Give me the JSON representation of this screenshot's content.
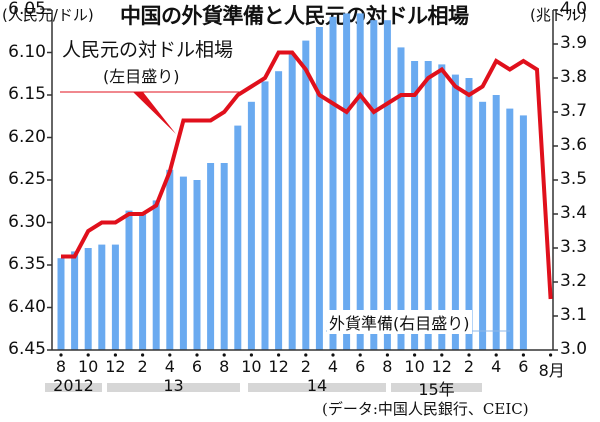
{
  "title": "中国の外貨準備と人民元の対ドル相場",
  "unit_left": "(人民元/ドル)",
  "unit_right": "(兆ドル)",
  "annotations": {
    "line_label": "人民元の対ドル相場",
    "line_sub": "(左目盛り)",
    "bar_label": "外貨準備(右目盛り)"
  },
  "source": "(データ:中国人民銀行、CEIC)",
  "y_left_ticks": [
    "6.05",
    "6.10",
    "6.15",
    "6.20",
    "6.25",
    "6.30",
    "6.35",
    "6.40",
    "6.45"
  ],
  "y_right_ticks": [
    "4.0",
    "3.9",
    "3.8",
    "3.7",
    "3.6",
    "3.5",
    "3.4",
    "3.3",
    "3.2",
    "3.1",
    "3.0"
  ],
  "x_ticks": [
    "8",
    "10",
    "12",
    "2",
    "4",
    "6",
    "8",
    "10",
    "12",
    "2",
    "4",
    "6",
    "8",
    "10",
    "12",
    "2",
    "4",
    "6",
    "8月"
  ],
  "years": [
    "2012",
    "13",
    "14",
    "15年"
  ],
  "colors": {
    "bars": "#6aaaf0",
    "line": "#e0101c",
    "axis": "#333333",
    "year_band": "#d6d6d6"
  },
  "chart_data": {
    "type": "bar+line",
    "title": "中国の外貨準備と人民元の対ドル相場",
    "xlabel": "",
    "categories": [
      "2012-08",
      "2012-09",
      "2012-10",
      "2012-11",
      "2012-12",
      "2013-01",
      "2013-02",
      "2013-03",
      "2013-04",
      "2013-05",
      "2013-06",
      "2013-07",
      "2013-08",
      "2013-09",
      "2013-10",
      "2013-11",
      "2013-12",
      "2014-01",
      "2014-02",
      "2014-03",
      "2014-04",
      "2014-05",
      "2014-06",
      "2014-07",
      "2014-08",
      "2014-09",
      "2014-10",
      "2014-11",
      "2014-12",
      "2015-01",
      "2015-02",
      "2015-03",
      "2015-04",
      "2015-05",
      "2015-06",
      "2015-07",
      "2015-08"
    ],
    "series": [
      {
        "name": "外貨準備(右目盛り)",
        "type": "bar",
        "axis": "right",
        "unit": "兆ドル",
        "ylim": [
          3.0,
          4.0
        ],
        "values": [
          3.27,
          3.29,
          3.3,
          3.31,
          3.31,
          3.41,
          3.4,
          3.44,
          3.53,
          3.51,
          3.5,
          3.55,
          3.55,
          3.66,
          3.73,
          3.79,
          3.82,
          3.87,
          3.91,
          3.95,
          3.98,
          3.99,
          3.99,
          3.97,
          3.97,
          3.89,
          3.85,
          3.85,
          3.84,
          3.81,
          3.8,
          3.73,
          3.75,
          3.71,
          3.69,
          null,
          null
        ]
      },
      {
        "name": "人民元の対ドル相場(左目盛り)",
        "type": "line",
        "axis": "left",
        "unit": "人民元/ドル",
        "ylim": [
          6.45,
          6.05
        ],
        "inverted": true,
        "values": [
          6.34,
          6.34,
          6.31,
          6.3,
          6.3,
          6.29,
          6.29,
          6.28,
          6.24,
          6.18,
          6.18,
          6.18,
          6.17,
          6.15,
          6.14,
          6.13,
          6.1,
          6.1,
          6.12,
          6.15,
          6.16,
          6.17,
          6.15,
          6.17,
          6.16,
          6.15,
          6.15,
          6.13,
          6.12,
          6.14,
          6.15,
          6.14,
          6.11,
          6.12,
          6.11,
          6.12,
          6.39
        ]
      }
    ],
    "y_left": {
      "label": "(人民元/ドル)",
      "ticks": [
        6.05,
        6.1,
        6.15,
        6.2,
        6.25,
        6.3,
        6.35,
        6.4,
        6.45
      ],
      "inverted": true
    },
    "y_right": {
      "label": "(兆ドル)",
      "ticks": [
        3.0,
        3.1,
        3.2,
        3.3,
        3.4,
        3.5,
        3.6,
        3.7,
        3.8,
        3.9,
        4.0
      ]
    },
    "grid": false,
    "legend": "inline annotations",
    "source": "(データ:中国人民銀行、CEIC)"
  }
}
